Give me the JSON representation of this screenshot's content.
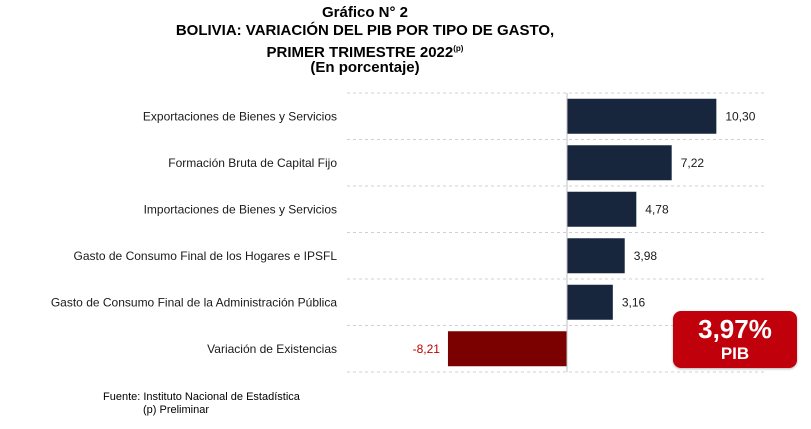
{
  "titles": {
    "line1": "Gráfico N° 2",
    "line2": "BOLIVIA: VARIACIÓN DEL PIB POR TIPO DE GASTO,",
    "line3": "PRIMER TRIMESTRE 2022",
    "line3_sup": "(p)",
    "line4": "(En porcentaje)"
  },
  "chart_data": {
    "type": "bar",
    "orientation": "horizontal",
    "categories": [
      "Exportaciones de Bienes y Servicios",
      "Formación Bruta de Capital Fijo",
      "Importaciones de Bienes y Servicios",
      "Gasto de Consumo Final de los Hogares e  IPSFL",
      "Gasto de Consumo Final de la Administración Pública",
      "Variación de Existencias"
    ],
    "values": [
      10.3,
      7.22,
      4.78,
      3.98,
      3.16,
      -8.21
    ],
    "value_labels": [
      "10,30",
      "7,22",
      "4,78",
      "3,98",
      "3,16",
      "-8,21"
    ],
    "colors": {
      "positive": "#17263c",
      "negative": "#7b0000",
      "negative_label": "#c00000"
    },
    "grid": "dashed horizontal",
    "title": "BOLIVIA: VARIACIÓN DEL PIB POR TIPO DE GASTO, PRIMER TRIMESTRE 2022(p)"
  },
  "badge": {
    "value": "3,97%",
    "label": "PIB",
    "color": "#c0000a"
  },
  "footer": {
    "source": "Fuente: Instituto Nacional de Estadística",
    "note": "(p) Preliminar"
  }
}
